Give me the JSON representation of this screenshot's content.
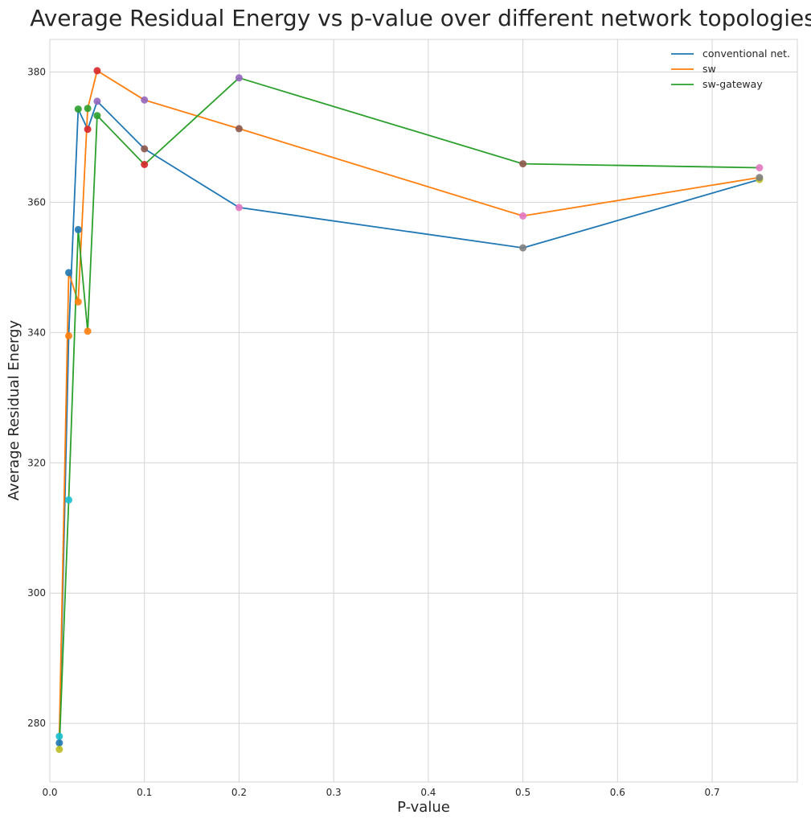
{
  "chart_data": {
    "type": "line",
    "title": "Average Residual Energy vs p-value over different network topologies",
    "xlabel": "P-value",
    "ylabel": "Average Residual Energy",
    "xlim": [
      0.0,
      0.79
    ],
    "ylim": [
      271,
      385
    ],
    "xticks": [
      0.0,
      0.1,
      0.2,
      0.3,
      0.4,
      0.5,
      0.6,
      0.7
    ],
    "xtick_labels": [
      "0.0",
      "0.1",
      "0.2",
      "0.3",
      "0.4",
      "0.5",
      "0.6",
      "0.7"
    ],
    "yticks": [
      280,
      300,
      320,
      340,
      360,
      380
    ],
    "ytick_labels": [
      "280",
      "300",
      "320",
      "340",
      "360",
      "380"
    ],
    "grid": true,
    "legend_position": "top-right",
    "series": [
      {
        "name": "conventional net.",
        "color": "#1f77b4",
        "x": [
          0.01,
          0.02,
          0.03,
          0.04,
          0.05,
          0.1,
          0.2,
          0.5,
          0.75
        ],
        "y": [
          277,
          339.5,
          374.3,
          371.2,
          375.5,
          368.2,
          359.2,
          353.0,
          363.5
        ]
      },
      {
        "name": "sw",
        "color": "#ff7f0e",
        "x": [
          0.01,
          0.02,
          0.03,
          0.04,
          0.05,
          0.1,
          0.2,
          0.5,
          0.75
        ],
        "y": [
          278,
          349.2,
          344.7,
          374.4,
          380.2,
          375.7,
          371.3,
          357.9,
          363.8
        ]
      },
      {
        "name": "sw-gateway",
        "color": "#2ca02c",
        "x": [
          0.01,
          0.02,
          0.03,
          0.04,
          0.05,
          0.1,
          0.2,
          0.5,
          0.75
        ],
        "y": [
          276,
          314.3,
          355.8,
          340.2,
          373.3,
          365.8,
          379.1,
          365.9,
          365.3
        ]
      }
    ],
    "marker_colors": [
      "#1f77b4",
      "#ff7f0e",
      "#2ca02c",
      "#d62728",
      "#9467bd",
      "#8c564b",
      "#e377c2",
      "#7f7f7f",
      "#bcbd22",
      "#17becf"
    ]
  }
}
